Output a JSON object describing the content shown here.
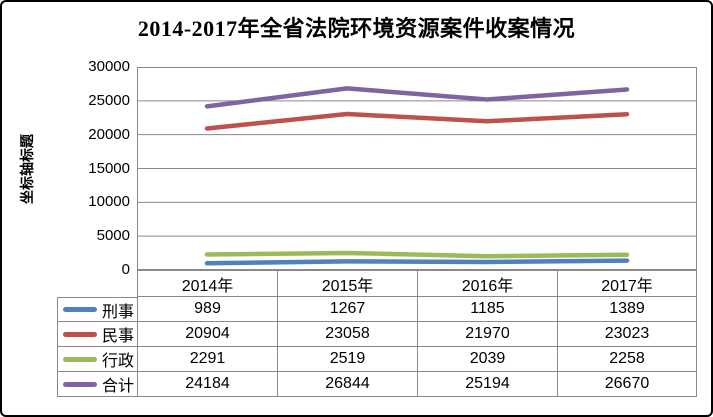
{
  "chart_data": {
    "type": "line",
    "title": "2014-2017年全省法院环境资源案件收案情况",
    "y_axis_title": "坐标轴标题",
    "xlabel": "",
    "ylabel": "坐标轴标题",
    "categories": [
      "2014年",
      "2015年",
      "2016年",
      "2017年"
    ],
    "series": [
      {
        "name": "刑事",
        "color": "#4F81BD",
        "values": [
          989,
          1267,
          1185,
          1389
        ]
      },
      {
        "name": "民事",
        "color": "#C0504D",
        "values": [
          20904,
          23058,
          21970,
          23023
        ]
      },
      {
        "name": "行政",
        "color": "#9BBB59",
        "values": [
          2291,
          2519,
          2039,
          2258
        ]
      },
      {
        "name": "合计",
        "color": "#8064A2",
        "values": [
          24184,
          26844,
          25194,
          26670
        ]
      }
    ],
    "ylim": [
      0,
      30000
    ],
    "y_ticks": [
      0,
      5000,
      10000,
      15000,
      20000,
      25000,
      30000
    ],
    "grid": true,
    "legend_position": "table-left-column",
    "data_table_shown": true
  },
  "colors": {
    "grid_line": "#898989",
    "table_border": "#898989",
    "outer_border": "#000000",
    "background": "#ffffff",
    "text": "#000000"
  }
}
